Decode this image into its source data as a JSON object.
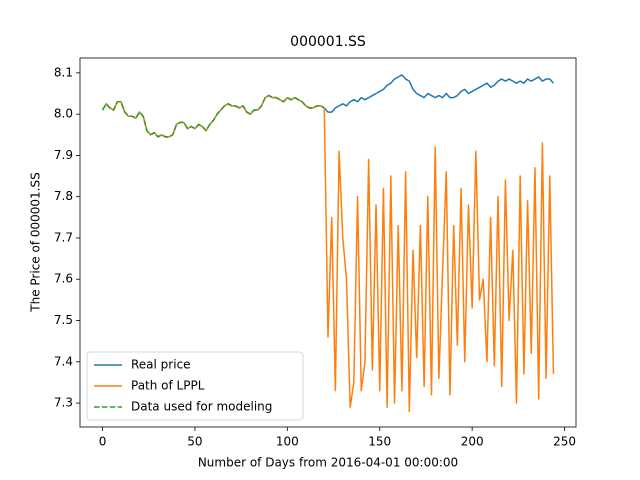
{
  "chart_data": {
    "type": "line",
    "title": "000001.SS",
    "x_label": "Number of Days from 2016-04-01 00:00:00",
    "y_label": "The Price of 000001.SS",
    "xlim": [
      -12.2,
      256.2
    ],
    "xticks": [
      0,
      50,
      100,
      150,
      200,
      250
    ],
    "ylim": [
      7.242,
      8.136
    ],
    "yticks": [
      {
        "value": 7.3,
        "label": "7.3"
      },
      {
        "value": 7.4,
        "label": "7.4"
      },
      {
        "value": 7.5,
        "label": "7.5"
      },
      {
        "value": 7.6,
        "label": "7.6"
      },
      {
        "value": 7.7,
        "label": "7.7"
      },
      {
        "value": 7.8,
        "label": "7.8"
      },
      {
        "value": 7.9,
        "label": "7.9"
      },
      {
        "value": 8.0,
        "label": "8.0"
      },
      {
        "value": 8.1,
        "label": "8.1"
      }
    ],
    "legend": "lower left",
    "x": [
      0,
      2,
      4,
      6,
      8,
      10,
      12,
      14,
      16,
      18,
      20,
      22,
      24,
      26,
      28,
      30,
      32,
      34,
      36,
      38,
      40,
      42,
      44,
      46,
      48,
      50,
      52,
      54,
      56,
      58,
      60,
      62,
      64,
      66,
      68,
      70,
      72,
      74,
      76,
      78,
      80,
      82,
      84,
      86,
      88,
      90,
      92,
      94,
      96,
      98,
      100,
      102,
      104,
      106,
      108,
      110,
      112,
      114,
      116,
      118,
      120,
      122,
      124,
      126,
      128,
      130,
      132,
      134,
      136,
      138,
      140,
      142,
      144,
      146,
      148,
      150,
      152,
      154,
      156,
      158,
      160,
      162,
      164,
      166,
      168,
      170,
      172,
      174,
      176,
      178,
      180,
      182,
      184,
      186,
      188,
      190,
      192,
      194,
      196,
      198,
      200,
      202,
      204,
      206,
      208,
      210,
      212,
      214,
      216,
      218,
      220,
      222,
      224,
      226,
      228,
      230,
      232,
      234,
      236,
      238,
      240,
      242,
      244
    ],
    "series": [
      {
        "name": "Real price",
        "color": "#1f77b4",
        "linestyle": "solid",
        "values": [
          8.01,
          8.025,
          8.015,
          8.01,
          8.03,
          8.03,
          8.005,
          7.995,
          7.995,
          7.99,
          8.005,
          7.995,
          7.96,
          7.95,
          7.955,
          7.945,
          7.95,
          7.945,
          7.945,
          7.95,
          7.975,
          7.98,
          7.98,
          7.965,
          7.97,
          7.965,
          7.975,
          7.97,
          7.96,
          7.975,
          7.985,
          8.0,
          8.01,
          8.02,
          8.025,
          8.02,
          8.02,
          8.015,
          8.02,
          8.005,
          8.0,
          8.01,
          8.01,
          8.02,
          8.04,
          8.045,
          8.04,
          8.04,
          8.035,
          8.03,
          8.04,
          8.035,
          8.04,
          8.035,
          8.03,
          8.02,
          8.015,
          8.015,
          8.02,
          8.02,
          8.015,
          8.005,
          8.005,
          8.015,
          8.02,
          8.025,
          8.02,
          8.03,
          8.035,
          8.03,
          8.04,
          8.035,
          8.04,
          8.045,
          8.05,
          8.055,
          8.06,
          8.07,
          8.075,
          8.085,
          8.09,
          8.095,
          8.085,
          8.08,
          8.06,
          8.05,
          8.045,
          8.04,
          8.05,
          8.045,
          8.04,
          8.045,
          8.04,
          8.05,
          8.04,
          8.04,
          8.045,
          8.055,
          8.06,
          8.05,
          8.055,
          8.06,
          8.065,
          8.07,
          8.075,
          8.065,
          8.07,
          8.08,
          8.085,
          8.08,
          8.085,
          8.08,
          8.075,
          8.08,
          8.075,
          8.085,
          8.08,
          8.085,
          8.09,
          8.08,
          8.085,
          8.085,
          8.075
        ]
      },
      {
        "name": "Path of LPPL",
        "color": "#ff7f0e",
        "linestyle": "solid",
        "values": [
          8.01,
          8.025,
          8.015,
          8.01,
          8.03,
          8.03,
          8.005,
          7.995,
          7.995,
          7.99,
          8.005,
          7.995,
          7.96,
          7.95,
          7.955,
          7.945,
          7.95,
          7.945,
          7.945,
          7.95,
          7.975,
          7.98,
          7.98,
          7.965,
          7.97,
          7.965,
          7.975,
          7.97,
          7.96,
          7.975,
          7.985,
          8.0,
          8.01,
          8.02,
          8.025,
          8.02,
          8.02,
          8.015,
          8.02,
          8.005,
          8.0,
          8.01,
          8.01,
          8.02,
          8.04,
          8.045,
          8.04,
          8.04,
          8.035,
          8.03,
          8.04,
          8.035,
          8.04,
          8.035,
          8.03,
          8.02,
          8.015,
          8.015,
          8.02,
          8.02,
          8.015,
          7.46,
          7.75,
          7.33,
          7.91,
          7.7,
          7.6,
          7.29,
          7.35,
          7.8,
          7.33,
          7.4,
          7.89,
          7.38,
          7.78,
          7.33,
          7.82,
          7.29,
          7.85,
          7.3,
          7.73,
          7.33,
          7.86,
          7.28,
          7.67,
          7.41,
          7.73,
          7.34,
          7.8,
          7.32,
          7.92,
          7.36,
          7.62,
          7.86,
          7.32,
          7.73,
          7.44,
          7.82,
          7.4,
          7.78,
          7.53,
          7.91,
          7.55,
          7.6,
          7.4,
          7.75,
          7.39,
          7.8,
          7.34,
          7.84,
          7.5,
          7.67,
          7.3,
          7.85,
          7.37,
          7.79,
          7.42,
          7.87,
          7.31,
          7.93,
          7.36,
          7.85,
          7.37
        ]
      },
      {
        "name": "Data used for modeling",
        "color": "#2ca02c",
        "linestyle": "dashed",
        "values": [
          8.01,
          8.025,
          8.015,
          8.01,
          8.03,
          8.03,
          8.005,
          7.995,
          7.995,
          7.99,
          8.005,
          7.995,
          7.96,
          7.95,
          7.955,
          7.945,
          7.95,
          7.945,
          7.945,
          7.95,
          7.975,
          7.98,
          7.98,
          7.965,
          7.97,
          7.965,
          7.975,
          7.97,
          7.96,
          7.975,
          7.985,
          8.0,
          8.01,
          8.02,
          8.025,
          8.02,
          8.02,
          8.015,
          8.02,
          8.005,
          8.0,
          8.01,
          8.01,
          8.02,
          8.04,
          8.045,
          8.04,
          8.04,
          8.035,
          8.03,
          8.04,
          8.035,
          8.04,
          8.035,
          8.03,
          8.02,
          8.015,
          8.015,
          8.02,
          8.02,
          8.015,
          null,
          null,
          null,
          null,
          null,
          null,
          null,
          null,
          null,
          null,
          null,
          null,
          null,
          null,
          null,
          null,
          null,
          null,
          null,
          null,
          null,
          null,
          null,
          null,
          null,
          null,
          null,
          null,
          null,
          null,
          null,
          null,
          null,
          null,
          null,
          null,
          null,
          null,
          null,
          null,
          null,
          null,
          null,
          null,
          null,
          null,
          null,
          null,
          null,
          null,
          null,
          null,
          null,
          null,
          null,
          null,
          null,
          null,
          null,
          null,
          null,
          null
        ]
      }
    ]
  }
}
